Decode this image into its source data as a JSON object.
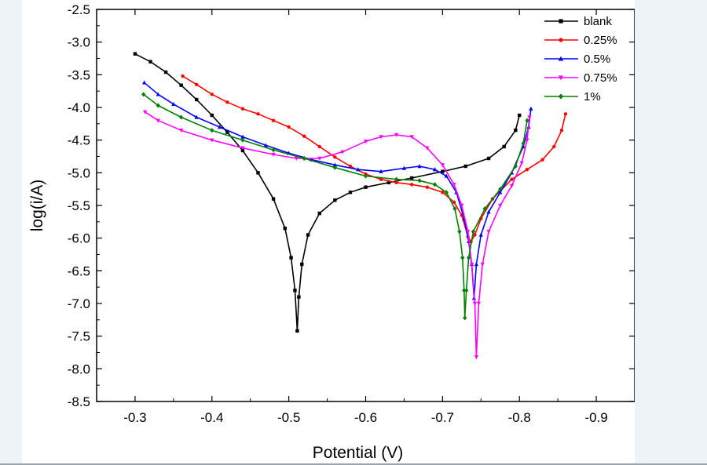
{
  "chart_data": {
    "type": "line",
    "title": "",
    "xlabel": "Potential (V)",
    "ylabel": "log(i/A)",
    "xlim": [
      -0.25,
      -0.95
    ],
    "ylim": [
      -8.5,
      -2.5
    ],
    "x_reversed": true,
    "x_ticks": [
      -0.3,
      -0.4,
      -0.5,
      -0.6,
      -0.7,
      -0.8,
      -0.9
    ],
    "x_tick_labels": [
      "-0.3",
      "-0.4",
      "-0.5",
      "-0.6",
      "-0.7",
      "-0.8",
      "-0.9"
    ],
    "y_ticks": [
      -2.5,
      -3.0,
      -3.5,
      -4.0,
      -4.5,
      -5.0,
      -5.5,
      -6.0,
      -6.5,
      -7.0,
      -7.5,
      -8.0,
      -8.5
    ],
    "y_tick_labels": [
      "-2.5",
      "-3.0",
      "-3.5",
      "-4.0",
      "-4.5",
      "-5.0",
      "-5.5",
      "-6.0",
      "-6.5",
      "-7.0",
      "-7.5",
      "-8.0",
      "-8.5"
    ],
    "grid": false,
    "legend_position": "top-right",
    "series": [
      {
        "name": "blank",
        "color": "#000000",
        "marker": "square",
        "points": [
          [
            -0.3,
            -3.18
          ],
          [
            -0.32,
            -3.3
          ],
          [
            -0.34,
            -3.46
          ],
          [
            -0.36,
            -3.66
          ],
          [
            -0.38,
            -3.88
          ],
          [
            -0.4,
            -4.12
          ],
          [
            -0.42,
            -4.38
          ],
          [
            -0.44,
            -4.66
          ],
          [
            -0.46,
            -5.0
          ],
          [
            -0.48,
            -5.4
          ],
          [
            -0.495,
            -5.85
          ],
          [
            -0.503,
            -6.3
          ],
          [
            -0.508,
            -6.8
          ],
          [
            -0.511,
            -7.42
          ],
          [
            -0.513,
            -6.9
          ],
          [
            -0.517,
            -6.4
          ],
          [
            -0.525,
            -5.95
          ],
          [
            -0.54,
            -5.62
          ],
          [
            -0.56,
            -5.42
          ],
          [
            -0.58,
            -5.3
          ],
          [
            -0.6,
            -5.22
          ],
          [
            -0.63,
            -5.15
          ],
          [
            -0.66,
            -5.08
          ],
          [
            -0.7,
            -4.98
          ],
          [
            -0.73,
            -4.9
          ],
          [
            -0.76,
            -4.78
          ],
          [
            -0.78,
            -4.6
          ],
          [
            -0.795,
            -4.35
          ],
          [
            -0.8,
            -4.12
          ]
        ]
      },
      {
        "name": "0.25%",
        "color": "#ff0000",
        "marker": "circle",
        "points": [
          [
            -0.362,
            -3.52
          ],
          [
            -0.38,
            -3.65
          ],
          [
            -0.4,
            -3.8
          ],
          [
            -0.42,
            -3.92
          ],
          [
            -0.44,
            -4.02
          ],
          [
            -0.46,
            -4.1
          ],
          [
            -0.48,
            -4.2
          ],
          [
            -0.5,
            -4.3
          ],
          [
            -0.52,
            -4.44
          ],
          [
            -0.54,
            -4.6
          ],
          [
            -0.56,
            -4.76
          ],
          [
            -0.58,
            -4.9
          ],
          [
            -0.6,
            -5.02
          ],
          [
            -0.62,
            -5.1
          ],
          [
            -0.64,
            -5.15
          ],
          [
            -0.66,
            -5.18
          ],
          [
            -0.68,
            -5.22
          ],
          [
            -0.7,
            -5.3
          ],
          [
            -0.715,
            -5.45
          ],
          [
            -0.725,
            -5.65
          ],
          [
            -0.733,
            -5.98
          ],
          [
            -0.737,
            -6.05
          ],
          [
            -0.742,
            -5.95
          ],
          [
            -0.75,
            -5.7
          ],
          [
            -0.765,
            -5.4
          ],
          [
            -0.79,
            -5.1
          ],
          [
            -0.81,
            -4.95
          ],
          [
            -0.83,
            -4.8
          ],
          [
            -0.845,
            -4.6
          ],
          [
            -0.855,
            -4.35
          ],
          [
            -0.86,
            -4.1
          ]
        ]
      },
      {
        "name": "0.5%",
        "color": "#0000ff",
        "marker": "triangle-up",
        "points": [
          [
            -0.312,
            -3.62
          ],
          [
            -0.33,
            -3.8
          ],
          [
            -0.35,
            -3.95
          ],
          [
            -0.38,
            -4.15
          ],
          [
            -0.41,
            -4.3
          ],
          [
            -0.44,
            -4.45
          ],
          [
            -0.47,
            -4.58
          ],
          [
            -0.5,
            -4.7
          ],
          [
            -0.53,
            -4.8
          ],
          [
            -0.56,
            -4.88
          ],
          [
            -0.59,
            -4.95
          ],
          [
            -0.62,
            -4.98
          ],
          [
            -0.65,
            -4.93
          ],
          [
            -0.67,
            -4.9
          ],
          [
            -0.69,
            -4.95
          ],
          [
            -0.705,
            -5.05
          ],
          [
            -0.718,
            -5.3
          ],
          [
            -0.728,
            -5.7
          ],
          [
            -0.734,
            -6.05
          ],
          [
            -0.738,
            -6.4
          ],
          [
            -0.741,
            -6.92
          ],
          [
            -0.744,
            -6.4
          ],
          [
            -0.75,
            -5.95
          ],
          [
            -0.76,
            -5.6
          ],
          [
            -0.775,
            -5.3
          ],
          [
            -0.79,
            -5.0
          ],
          [
            -0.805,
            -4.6
          ],
          [
            -0.812,
            -4.3
          ],
          [
            -0.815,
            -4.02
          ]
        ]
      },
      {
        "name": "0.75%",
        "color": "#ff00ff",
        "marker": "triangle-down",
        "points": [
          [
            -0.313,
            -4.07
          ],
          [
            -0.33,
            -4.2
          ],
          [
            -0.36,
            -4.35
          ],
          [
            -0.4,
            -4.5
          ],
          [
            -0.44,
            -4.62
          ],
          [
            -0.48,
            -4.72
          ],
          [
            -0.51,
            -4.78
          ],
          [
            -0.54,
            -4.78
          ],
          [
            -0.57,
            -4.68
          ],
          [
            -0.6,
            -4.52
          ],
          [
            -0.62,
            -4.45
          ],
          [
            -0.64,
            -4.42
          ],
          [
            -0.66,
            -4.45
          ],
          [
            -0.68,
            -4.62
          ],
          [
            -0.7,
            -4.88
          ],
          [
            -0.715,
            -5.18
          ],
          [
            -0.725,
            -5.5
          ],
          [
            -0.733,
            -5.9
          ],
          [
            -0.738,
            -6.4
          ],
          [
            -0.742,
            -7.0
          ],
          [
            -0.744,
            -7.82
          ],
          [
            -0.747,
            -7.0
          ],
          [
            -0.752,
            -6.4
          ],
          [
            -0.76,
            -5.9
          ],
          [
            -0.775,
            -5.5
          ],
          [
            -0.79,
            -5.2
          ],
          [
            -0.803,
            -4.85
          ],
          [
            -0.81,
            -4.5
          ],
          [
            -0.813,
            -4.15
          ]
        ]
      },
      {
        "name": "1%",
        "color": "#008000",
        "marker": "diamond",
        "points": [
          [
            -0.311,
            -3.8
          ],
          [
            -0.33,
            -3.97
          ],
          [
            -0.36,
            -4.15
          ],
          [
            -0.4,
            -4.35
          ],
          [
            -0.44,
            -4.5
          ],
          [
            -0.48,
            -4.65
          ],
          [
            -0.52,
            -4.78
          ],
          [
            -0.56,
            -4.92
          ],
          [
            -0.6,
            -5.05
          ],
          [
            -0.64,
            -5.1
          ],
          [
            -0.67,
            -5.12
          ],
          [
            -0.69,
            -5.18
          ],
          [
            -0.705,
            -5.3
          ],
          [
            -0.716,
            -5.55
          ],
          [
            -0.722,
            -5.9
          ],
          [
            -0.726,
            -6.3
          ],
          [
            -0.728,
            -6.8
          ],
          [
            -0.729,
            -7.22
          ],
          [
            -0.731,
            -6.8
          ],
          [
            -0.734,
            -6.3
          ],
          [
            -0.74,
            -5.9
          ],
          [
            -0.755,
            -5.55
          ],
          [
            -0.775,
            -5.25
          ],
          [
            -0.795,
            -4.9
          ],
          [
            -0.805,
            -4.55
          ],
          [
            -0.81,
            -4.2
          ]
        ]
      }
    ]
  }
}
